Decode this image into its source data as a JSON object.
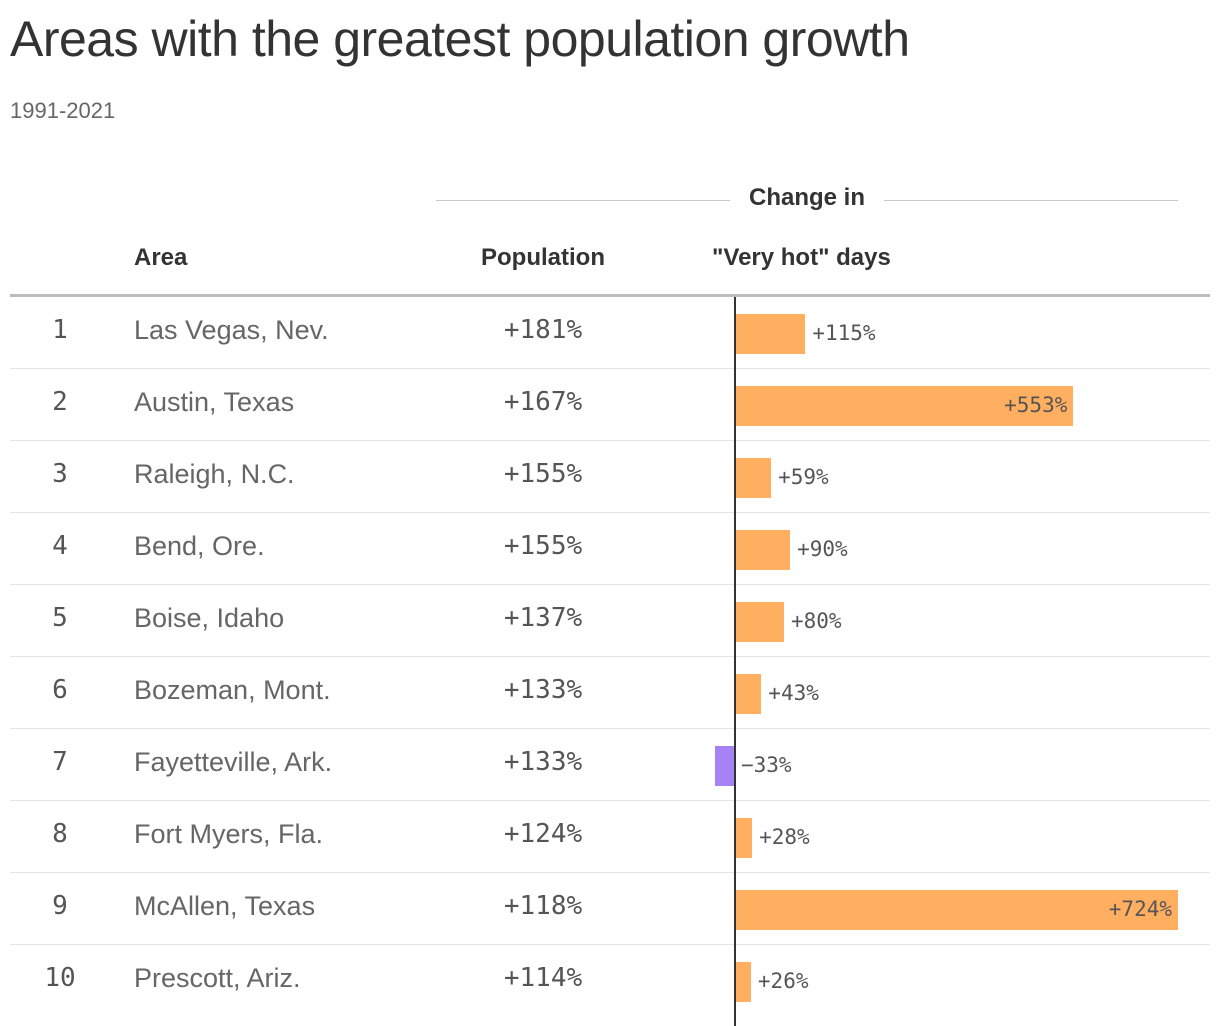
{
  "title": "Areas with the greatest population growth",
  "subtitle": "1991-2021",
  "group_header": "Change in",
  "columns": {
    "rank": "",
    "area": "Area",
    "population": "Population",
    "very_hot_days": "\"Very hot\" days"
  },
  "colors": {
    "positive": "#ffaf5f",
    "negative": "#a583f5",
    "axis": "#333333"
  },
  "chart_data": {
    "type": "table",
    "columns": [
      "",
      "Area",
      "Population",
      "\"Very hot\" days"
    ],
    "bar_column": "\"Very hot\" days",
    "bar_xlim": [
      -33,
      724
    ],
    "rows": [
      {
        "rank": "1",
        "area": "Las Vegas, Nev.",
        "population": "+181%",
        "very_hot_days": "+115%",
        "value": 115
      },
      {
        "rank": "2",
        "area": "Austin, Texas",
        "population": "+167%",
        "very_hot_days": "+553%",
        "value": 553
      },
      {
        "rank": "3",
        "area": "Raleigh, N.C.",
        "population": "+155%",
        "very_hot_days": "+59%",
        "value": 59
      },
      {
        "rank": "4",
        "area": "Bend, Ore.",
        "population": "+155%",
        "very_hot_days": "+90%",
        "value": 90
      },
      {
        "rank": "5",
        "area": "Boise, Idaho",
        "population": "+137%",
        "very_hot_days": "+80%",
        "value": 80
      },
      {
        "rank": "6",
        "area": "Bozeman, Mont.",
        "population": "+133%",
        "very_hot_days": "+43%",
        "value": 43
      },
      {
        "rank": "7",
        "area": "Fayetteville, Ark.",
        "population": "+133%",
        "very_hot_days": "−33%",
        "value": -33
      },
      {
        "rank": "8",
        "area": "Fort Myers, Fla.",
        "population": "+124%",
        "very_hot_days": "+28%",
        "value": 28
      },
      {
        "rank": "9",
        "area": "McAllen, Texas",
        "population": "+118%",
        "very_hot_days": "+724%",
        "value": 724
      },
      {
        "rank": "10",
        "area": "Prescott, Ariz.",
        "population": "+114%",
        "very_hot_days": "+26%",
        "value": 26
      }
    ]
  }
}
